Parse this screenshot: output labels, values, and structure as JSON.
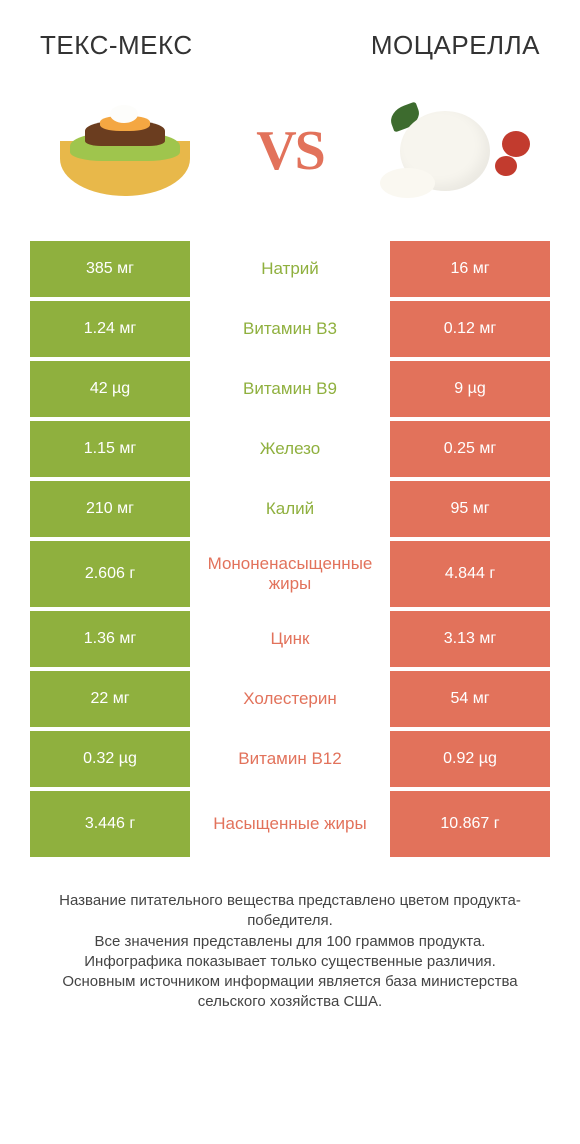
{
  "colors": {
    "green": "#8fb03e",
    "orange": "#e2725b",
    "mid_green": "#8fb03e",
    "mid_orange": "#e2725b",
    "text": "#333333",
    "background": "#ffffff"
  },
  "header": {
    "left": "ТЕКС-МЕКС",
    "right": "МОЦАРЕЛЛА",
    "vs": "VS"
  },
  "rows": [
    {
      "left": "385 мг",
      "mid": "Натрий",
      "right": "16 мг",
      "winner": "left",
      "tall": false
    },
    {
      "left": "1.24 мг",
      "mid": "Витамин B3",
      "right": "0.12 мг",
      "winner": "left",
      "tall": false
    },
    {
      "left": "42 µg",
      "mid": "Витамин B9",
      "right": "9 µg",
      "winner": "left",
      "tall": false
    },
    {
      "left": "1.15 мг",
      "mid": "Железо",
      "right": "0.25 мг",
      "winner": "left",
      "tall": false
    },
    {
      "left": "210 мг",
      "mid": "Калий",
      "right": "95 мг",
      "winner": "left",
      "tall": false
    },
    {
      "left": "2.606 г",
      "mid": "Мононенасыщенные жиры",
      "right": "4.844 г",
      "winner": "right",
      "tall": true
    },
    {
      "left": "1.36 мг",
      "mid": "Цинк",
      "right": "3.13 мг",
      "winner": "right",
      "tall": false
    },
    {
      "left": "22 мг",
      "mid": "Холестерин",
      "right": "54 мг",
      "winner": "right",
      "tall": false
    },
    {
      "left": "0.32 µg",
      "mid": "Витамин B12",
      "right": "0.92 µg",
      "winner": "right",
      "tall": false
    },
    {
      "left": "3.446 г",
      "mid": "Насыщенные жиры",
      "right": "10.867 г",
      "winner": "right",
      "tall": true
    }
  ],
  "footer": {
    "line1": "Название питательного вещества представлено цветом продукта-победителя.",
    "line2": "Все значения представлены для 100 граммов продукта.",
    "line3": "Инфографика показывает только существенные различия.",
    "line4": "Основным источником информации является база министерства сельского хозяйства США."
  }
}
